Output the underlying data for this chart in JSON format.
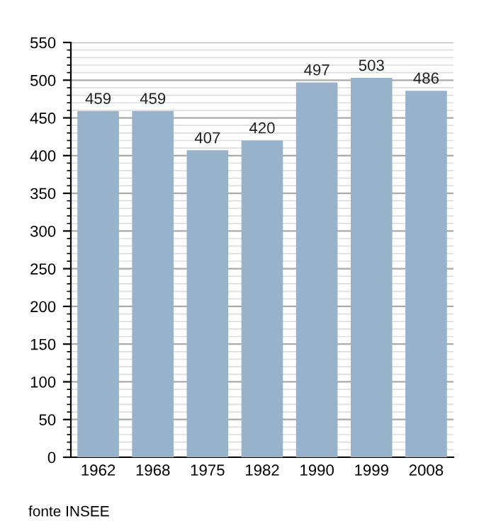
{
  "chart_data": {
    "type": "bar",
    "categories": [
      "1962",
      "1968",
      "1975",
      "1982",
      "1990",
      "1999",
      "2008"
    ],
    "values": [
      459,
      459,
      407,
      420,
      497,
      503,
      486
    ],
    "color": "#98b2cb",
    "ylim": [
      0,
      550
    ],
    "yticks": [
      0,
      50,
      100,
      150,
      200,
      250,
      300,
      350,
      400,
      450,
      500,
      550
    ],
    "grid": "y",
    "data_labels": true,
    "annotations": [
      "fonte INSEE"
    ]
  }
}
